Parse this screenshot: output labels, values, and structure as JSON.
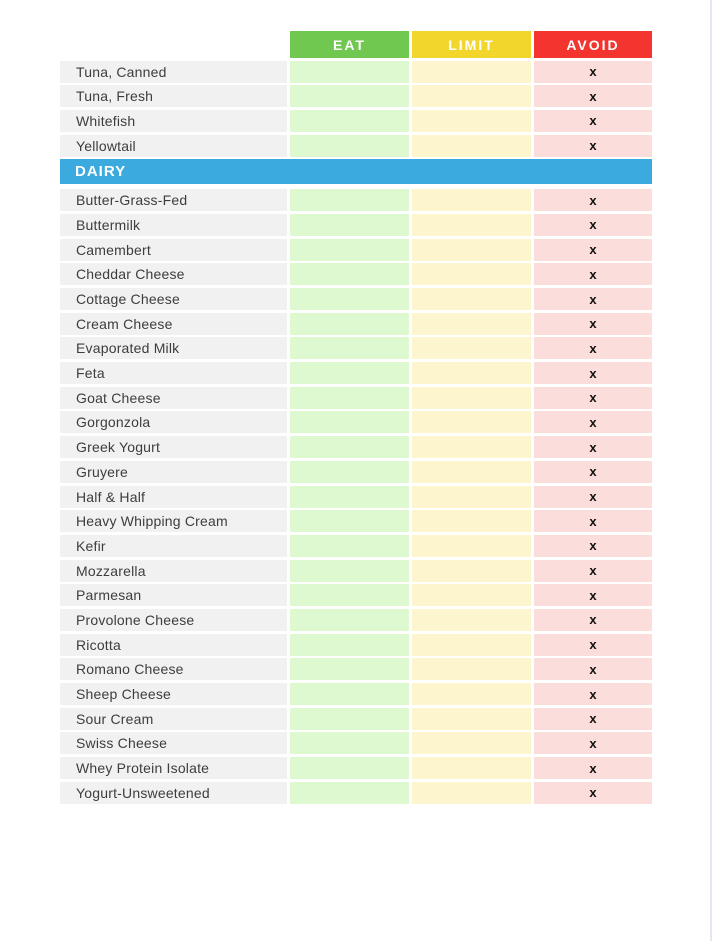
{
  "columns": {
    "eat": {
      "label": "EAT"
    },
    "limit": {
      "label": "LIMIT"
    },
    "avoid": {
      "label": "AVOID"
    }
  },
  "colors": {
    "eat_header": "#70C850",
    "limit_header": "#F2D62B",
    "avoid_header": "#F4342E",
    "eat_cell": "#DEF8D0",
    "limit_cell": "#FCF5CE",
    "avoid_cell": "#FBDEDB",
    "row_label_bg": "#F1F1F1",
    "section_header_bg": "#3BAADF",
    "header_text": "#FFFFFF",
    "label_text": "#3D3D3D",
    "marker_text": "#111111",
    "page_edge_line": "#E7E6F0"
  },
  "sections": [
    {
      "title": "",
      "items": [
        {
          "name": "Tuna, Canned",
          "eat": "",
          "limit": "",
          "avoid": "x"
        },
        {
          "name": "Tuna, Fresh",
          "eat": "",
          "limit": "",
          "avoid": "x"
        },
        {
          "name": "Whitefish",
          "eat": "",
          "limit": "",
          "avoid": "x"
        },
        {
          "name": "Yellowtail",
          "eat": "",
          "limit": "",
          "avoid": "x"
        }
      ]
    },
    {
      "title": "DAIRY",
      "items": [
        {
          "name": "Butter-Grass-Fed",
          "eat": "",
          "limit": "",
          "avoid": "x"
        },
        {
          "name": "Buttermilk",
          "eat": "",
          "limit": "",
          "avoid": "x"
        },
        {
          "name": "Camembert",
          "eat": "",
          "limit": "",
          "avoid": "x"
        },
        {
          "name": "Cheddar Cheese",
          "eat": "",
          "limit": "",
          "avoid": "x"
        },
        {
          "name": "Cottage Cheese",
          "eat": "",
          "limit": "",
          "avoid": "x"
        },
        {
          "name": "Cream Cheese",
          "eat": "",
          "limit": "",
          "avoid": "x"
        },
        {
          "name": "Evaporated Milk",
          "eat": "",
          "limit": "",
          "avoid": "x"
        },
        {
          "name": "Feta",
          "eat": "",
          "limit": "",
          "avoid": "x"
        },
        {
          "name": "Goat Cheese",
          "eat": "",
          "limit": "",
          "avoid": "x"
        },
        {
          "name": "Gorgonzola",
          "eat": "",
          "limit": "",
          "avoid": "x"
        },
        {
          "name": "Greek Yogurt",
          "eat": "",
          "limit": "",
          "avoid": "x"
        },
        {
          "name": "Gruyere",
          "eat": "",
          "limit": "",
          "avoid": "x"
        },
        {
          "name": "Half & Half",
          "eat": "",
          "limit": "",
          "avoid": "x"
        },
        {
          "name": "Heavy Whipping Cream",
          "eat": "",
          "limit": "",
          "avoid": "x"
        },
        {
          "name": "Kefir",
          "eat": "",
          "limit": "",
          "avoid": "x"
        },
        {
          "name": "Mozzarella",
          "eat": "",
          "limit": "",
          "avoid": "x"
        },
        {
          "name": "Parmesan",
          "eat": "",
          "limit": "",
          "avoid": "x"
        },
        {
          "name": "Provolone Cheese",
          "eat": "",
          "limit": "",
          "avoid": "x"
        },
        {
          "name": "Ricotta",
          "eat": "",
          "limit": "",
          "avoid": "x"
        },
        {
          "name": "Romano Cheese",
          "eat": "",
          "limit": "",
          "avoid": "x"
        },
        {
          "name": "Sheep Cheese",
          "eat": "",
          "limit": "",
          "avoid": "x"
        },
        {
          "name": "Sour Cream",
          "eat": "",
          "limit": "",
          "avoid": "x"
        },
        {
          "name": "Swiss Cheese",
          "eat": "",
          "limit": "",
          "avoid": "x"
        },
        {
          "name": "Whey Protein Isolate",
          "eat": "",
          "limit": "",
          "avoid": "x"
        },
        {
          "name": "Yogurt-Unsweetened",
          "eat": "",
          "limit": "",
          "avoid": "x"
        }
      ]
    }
  ]
}
